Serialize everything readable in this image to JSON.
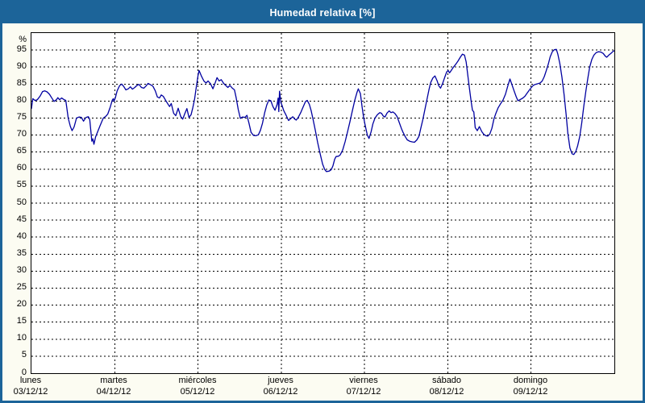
{
  "window": {
    "title": "Humedad relativa [%]"
  },
  "colors": {
    "title_bar": "#1C6499",
    "frame": "#1C6499",
    "background": "#FCFCF2",
    "plot_background": "#FFFFFF",
    "grid": "#000000",
    "line": "#0000A0",
    "title_text": "#FFFFFF",
    "label_text": "#000000"
  },
  "chart_data": {
    "type": "line",
    "title": "Humedad relativa [%]",
    "xlabel": "",
    "ylabel": "%",
    "unit": "%",
    "ylim": [
      0,
      100
    ],
    "ytick_min": 0,
    "ytick_max": 95,
    "ytick_step": 5,
    "grid": "dashed black, horizontal every 5%, vertical at each day boundary",
    "legend_position": "none",
    "x_total_hours": 168,
    "x_days": [
      {
        "name": "lunes",
        "date": "03/12/12"
      },
      {
        "name": "martes",
        "date": "04/12/12"
      },
      {
        "name": "miércoles",
        "date": "05/12/12"
      },
      {
        "name": "jueves",
        "date": "06/12/12"
      },
      {
        "name": "viernes",
        "date": "07/12/12"
      },
      {
        "name": "sábado",
        "date": "08/12/12"
      },
      {
        "name": "domingo",
        "date": "09/12/12"
      }
    ],
    "series": [
      {
        "name": "Humedad relativa",
        "color": "#0000A0",
        "points": [
          [
            0,
            77.8
          ],
          [
            0.4,
            80.7
          ],
          [
            1,
            80.2
          ],
          [
            1.7,
            80.4
          ],
          [
            2.5,
            81.5
          ],
          [
            3.2,
            82.8
          ],
          [
            3.8,
            83.0
          ],
          [
            4.5,
            82.7
          ],
          [
            5.2,
            82.0
          ],
          [
            5.8,
            81.0
          ],
          [
            6.5,
            79.9
          ],
          [
            7.2,
            80.4
          ],
          [
            7.6,
            81.0
          ],
          [
            8.1,
            80.4
          ],
          [
            8.7,
            80.9
          ],
          [
            9.3,
            80.5
          ],
          [
            9.9,
            80.2
          ],
          [
            10.6,
            75.0
          ],
          [
            11.2,
            72.6
          ],
          [
            11.7,
            71.3
          ],
          [
            12.3,
            72.4
          ],
          [
            13,
            75.0
          ],
          [
            13.7,
            75.3
          ],
          [
            14.4,
            75.2
          ],
          [
            15,
            74.1
          ],
          [
            15.7,
            75.2
          ],
          [
            16.4,
            75.4
          ],
          [
            16.8,
            74.6
          ],
          [
            17.4,
            68.2
          ],
          [
            17.7,
            68.9
          ],
          [
            18,
            67.3
          ],
          [
            18.5,
            69.5
          ],
          [
            19,
            70.8
          ],
          [
            19.8,
            72.8
          ],
          [
            20.7,
            75.0
          ],
          [
            21.4,
            75.5
          ],
          [
            22,
            76.2
          ],
          [
            22.7,
            78.2
          ],
          [
            23.3,
            80.3
          ],
          [
            23.6,
            80.7
          ],
          [
            23.8,
            79.9
          ],
          [
            24.2,
            81.0
          ],
          [
            24.7,
            83.0
          ],
          [
            25.4,
            84.5
          ],
          [
            26,
            85.0
          ],
          [
            26.6,
            84.3
          ],
          [
            27.2,
            83.3
          ],
          [
            27.9,
            83.6
          ],
          [
            28.5,
            84.2
          ],
          [
            29.1,
            83.5
          ],
          [
            29.8,
            84.0
          ],
          [
            30.4,
            84.6
          ],
          [
            31,
            84.9
          ],
          [
            31.7,
            84.0
          ],
          [
            32.4,
            83.8
          ],
          [
            33,
            84.4
          ],
          [
            33.6,
            85.2
          ],
          [
            34.3,
            84.8
          ],
          [
            35,
            84.4
          ],
          [
            35.7,
            83.0
          ],
          [
            36.3,
            81.2
          ],
          [
            36.9,
            80.9
          ],
          [
            37.4,
            81.8
          ],
          [
            38,
            81.4
          ],
          [
            38.7,
            80.2
          ],
          [
            39.3,
            79.2
          ],
          [
            39.8,
            78.4
          ],
          [
            40.3,
            79.3
          ],
          [
            41,
            76.4
          ],
          [
            41.6,
            75.7
          ],
          [
            42.3,
            77.9
          ],
          [
            43,
            75.5
          ],
          [
            43.6,
            74.7
          ],
          [
            44.2,
            76.3
          ],
          [
            44.8,
            77.8
          ],
          [
            45.4,
            75.2
          ],
          [
            46,
            76.0
          ],
          [
            46.5,
            78.0
          ],
          [
            47,
            80.5
          ],
          [
            47.5,
            84.0
          ],
          [
            48,
            87.5
          ],
          [
            48.3,
            89.0
          ],
          [
            49,
            87.3
          ],
          [
            49.7,
            85.9
          ],
          [
            50.3,
            85.3
          ],
          [
            50.9,
            85.9
          ],
          [
            51.6,
            85.1
          ],
          [
            52.3,
            83.6
          ],
          [
            53,
            85.5
          ],
          [
            53.5,
            86.9
          ],
          [
            54.1,
            85.9
          ],
          [
            54.7,
            86.3
          ],
          [
            55.4,
            85.2
          ],
          [
            56,
            84.6
          ],
          [
            56.6,
            84.0
          ],
          [
            57.2,
            84.6
          ],
          [
            57.9,
            83.8
          ],
          [
            58.5,
            83.3
          ],
          [
            59,
            81.0
          ],
          [
            59.6,
            77.5
          ],
          [
            60.2,
            74.9
          ],
          [
            60.8,
            75.3
          ],
          [
            61.5,
            75.2
          ],
          [
            62.1,
            75.8
          ],
          [
            62.7,
            73.5
          ],
          [
            63.3,
            70.8
          ],
          [
            64,
            69.9
          ],
          [
            64.7,
            69.8
          ],
          [
            65.4,
            70.1
          ],
          [
            66,
            71.4
          ],
          [
            66.6,
            73.5
          ],
          [
            67.2,
            76.5
          ],
          [
            67.8,
            78.8
          ],
          [
            68.4,
            80.3
          ],
          [
            69,
            80.1
          ],
          [
            69.6,
            78.4
          ],
          [
            70.2,
            77.3
          ],
          [
            70.8,
            79.0
          ],
          [
            71.3,
            76.9
          ],
          [
            71.9,
            79.5
          ],
          [
            71.1,
            80.9
          ],
          [
            71.5,
            82.9
          ],
          [
            72.2,
            78.8
          ],
          [
            72.7,
            77.2
          ],
          [
            73.4,
            75.8
          ],
          [
            74.1,
            74.3
          ],
          [
            74.8,
            74.9
          ],
          [
            75.3,
            75.4
          ],
          [
            75.9,
            74.7
          ],
          [
            76.3,
            74.4
          ],
          [
            76.9,
            75.2
          ],
          [
            77.6,
            76.6
          ],
          [
            78.3,
            78.3
          ],
          [
            79,
            79.9
          ],
          [
            79.5,
            80.2
          ],
          [
            80.1,
            79.0
          ],
          [
            80.6,
            77.2
          ],
          [
            81.2,
            74.5
          ],
          [
            81.8,
            71.5
          ],
          [
            82.5,
            67.8
          ],
          [
            83.2,
            64.5
          ],
          [
            83.9,
            61.5
          ],
          [
            84.5,
            59.9
          ],
          [
            85,
            59.3
          ],
          [
            85.8,
            59.4
          ],
          [
            86.4,
            59.8
          ],
          [
            86.9,
            61.0
          ],
          [
            87.4,
            62.9
          ],
          [
            87.8,
            63.7
          ],
          [
            88.5,
            63.8
          ],
          [
            89,
            64.2
          ],
          [
            89.7,
            65.6
          ],
          [
            90.4,
            68.0
          ],
          [
            91.1,
            71.0
          ],
          [
            91.8,
            74.0
          ],
          [
            92.5,
            77.2
          ],
          [
            93.2,
            80.3
          ],
          [
            93.8,
            82.5
          ],
          [
            94.2,
            83.6
          ],
          [
            94.8,
            82.2
          ],
          [
            95.3,
            78.3
          ],
          [
            95.7,
            75.3
          ],
          [
            96.2,
            72.8
          ],
          [
            96.8,
            70.0
          ],
          [
            97.3,
            69.0
          ],
          [
            97.9,
            71.0
          ],
          [
            98.4,
            73.3
          ],
          [
            99,
            75.0
          ],
          [
            99.7,
            76.0
          ],
          [
            100.4,
            76.6
          ],
          [
            100.9,
            76.4
          ],
          [
            101.4,
            75.6
          ],
          [
            101.9,
            75.3
          ],
          [
            102.5,
            76.5
          ],
          [
            103.1,
            77.1
          ],
          [
            103.6,
            76.6
          ],
          [
            104.2,
            76.8
          ],
          [
            104.8,
            76.3
          ],
          [
            105.4,
            75.4
          ],
          [
            106,
            73.7
          ],
          [
            106.6,
            72.0
          ],
          [
            107.1,
            70.8
          ],
          [
            107.7,
            69.6
          ],
          [
            108.3,
            68.6
          ],
          [
            109,
            68.2
          ],
          [
            109.7,
            68.0
          ],
          [
            110.4,
            67.9
          ],
          [
            111.1,
            68.6
          ],
          [
            111.7,
            69.7
          ],
          [
            112.2,
            72.0
          ],
          [
            112.8,
            74.5
          ],
          [
            113.4,
            77.5
          ],
          [
            114,
            80.5
          ],
          [
            114.6,
            83.5
          ],
          [
            115.1,
            85.5
          ],
          [
            115.7,
            86.8
          ],
          [
            116.3,
            87.4
          ],
          [
            116.9,
            86.0
          ],
          [
            117.4,
            84.5
          ],
          [
            117.9,
            83.8
          ],
          [
            118.5,
            85.2
          ],
          [
            119.1,
            87.0
          ],
          [
            119.7,
            88.6
          ],
          [
            120.1,
            89.0
          ],
          [
            120.5,
            88.3
          ],
          [
            121,
            89.0
          ],
          [
            121.5,
            89.8
          ],
          [
            122.2,
            90.7
          ],
          [
            122.9,
            91.7
          ],
          [
            123.6,
            92.9
          ],
          [
            124.2,
            93.8
          ],
          [
            124.8,
            93.5
          ],
          [
            125.3,
            91.5
          ],
          [
            125.7,
            88.0
          ],
          [
            126.2,
            84.0
          ],
          [
            126.7,
            80.0
          ],
          [
            127.1,
            77.3
          ],
          [
            127.5,
            76.8
          ],
          [
            127.9,
            72.2
          ],
          [
            128.5,
            71.3
          ],
          [
            129.1,
            72.5
          ],
          [
            129.8,
            71.0
          ],
          [
            130.4,
            70.2
          ],
          [
            131,
            69.8
          ],
          [
            131.5,
            69.7
          ],
          [
            132.1,
            70.3
          ],
          [
            132.7,
            72.0
          ],
          [
            133.3,
            74.8
          ],
          [
            133.9,
            76.5
          ],
          [
            134.5,
            78.0
          ],
          [
            135.2,
            79.2
          ],
          [
            135.9,
            80.3
          ],
          [
            136.6,
            82.0
          ],
          [
            137.3,
            84.5
          ],
          [
            137.9,
            86.5
          ],
          [
            138.5,
            84.8
          ],
          [
            139.1,
            83.0
          ],
          [
            139.7,
            81.3
          ],
          [
            140.2,
            80.1
          ],
          [
            140.8,
            80.4
          ],
          [
            141.5,
            80.8
          ],
          [
            142.2,
            81.4
          ],
          [
            142.9,
            82.4
          ],
          [
            143.6,
            83.4
          ],
          [
            144.1,
            84.0
          ],
          [
            144.6,
            84.6
          ],
          [
            145.2,
            84.9
          ],
          [
            145.9,
            85.1
          ],
          [
            146.6,
            85.3
          ],
          [
            147.2,
            85.9
          ],
          [
            147.8,
            87.2
          ],
          [
            148.4,
            89.0
          ],
          [
            149,
            91.0
          ],
          [
            149.5,
            93.0
          ],
          [
            150.1,
            94.5
          ],
          [
            150.7,
            95.1
          ],
          [
            151.3,
            95.2
          ],
          [
            151.7,
            93.8
          ],
          [
            152.3,
            91.0
          ],
          [
            152.9,
            87.0
          ],
          [
            153.5,
            82.0
          ],
          [
            154.1,
            76.0
          ],
          [
            154.6,
            70.5
          ],
          [
            155.2,
            66.2
          ],
          [
            155.8,
            64.5
          ],
          [
            156.3,
            64.3
          ],
          [
            156.9,
            65.2
          ],
          [
            157.4,
            66.8
          ],
          [
            158,
            69.5
          ],
          [
            158.6,
            73.5
          ],
          [
            159.2,
            78.5
          ],
          [
            159.8,
            83.0
          ],
          [
            160.4,
            87.0
          ],
          [
            160.9,
            90.0
          ],
          [
            161.5,
            92.2
          ],
          [
            162.1,
            93.5
          ],
          [
            162.7,
            94.2
          ],
          [
            163.4,
            94.5
          ],
          [
            164.1,
            94.4
          ],
          [
            164.8,
            94.0
          ],
          [
            165.4,
            93.2
          ],
          [
            165.8,
            92.9
          ],
          [
            166.4,
            93.5
          ],
          [
            167,
            94.0
          ],
          [
            167.6,
            94.6
          ],
          [
            168,
            94.8
          ]
        ]
      }
    ]
  }
}
